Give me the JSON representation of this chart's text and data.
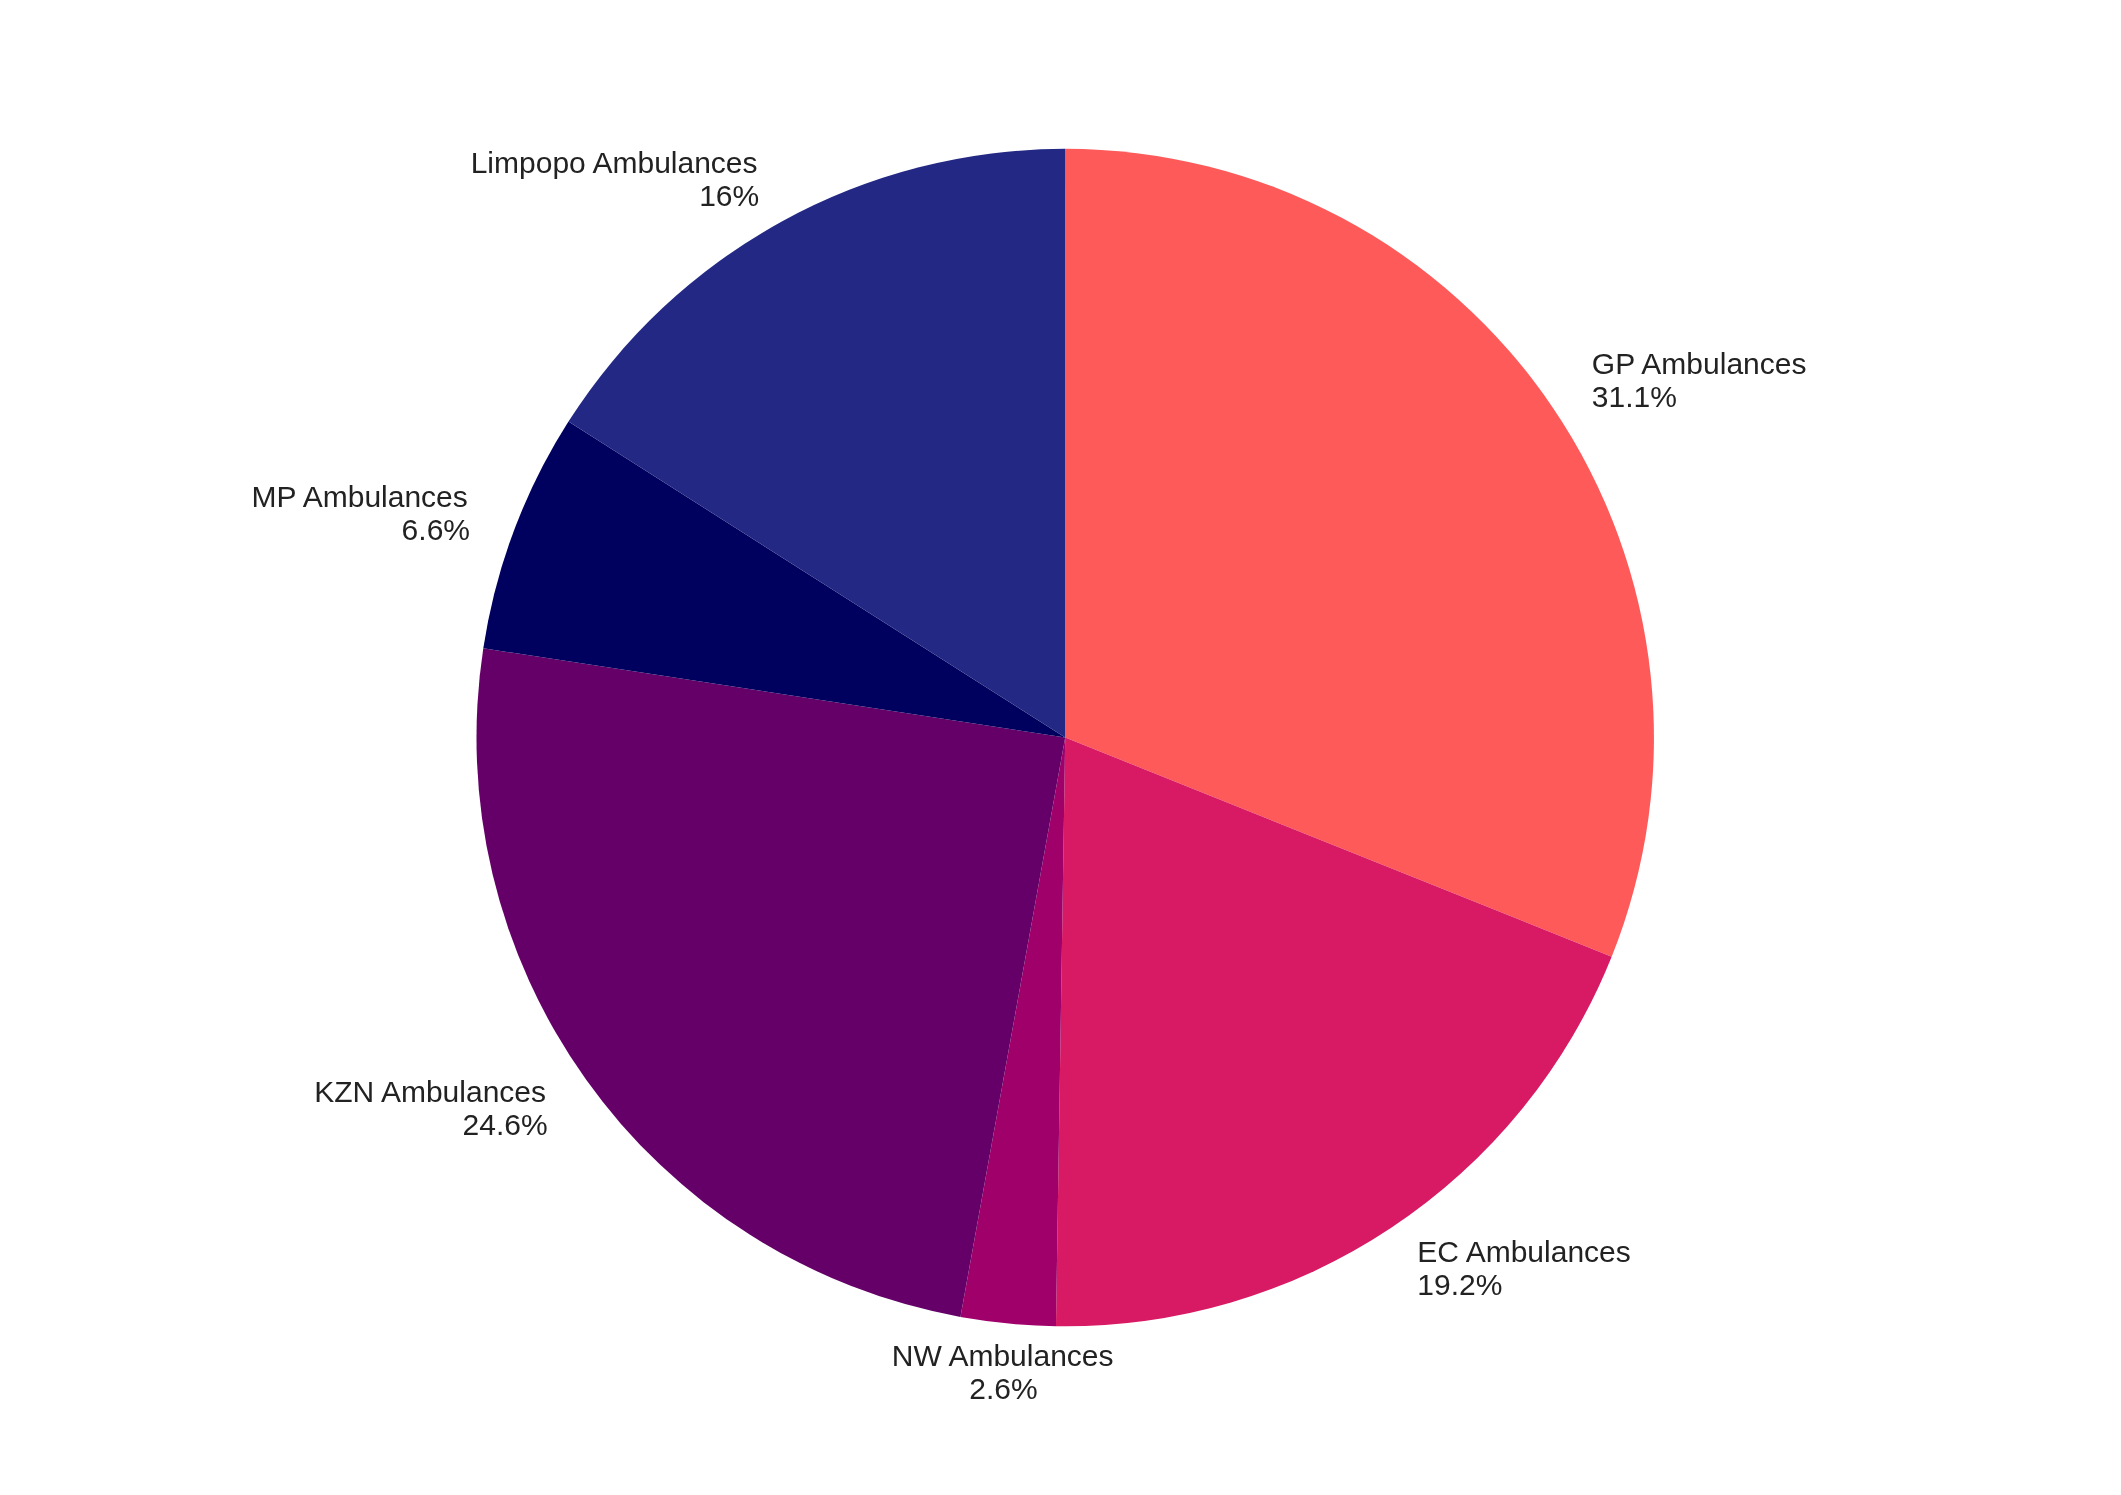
{
  "chart_data": {
    "type": "pie",
    "categories": [
      "GP Ambulances",
      "EC Ambulances",
      "NW Ambulances",
      "KZN Ambulances",
      "MP Ambulances",
      "Limpopo Ambulances"
    ],
    "values": [
      31.1,
      19.2,
      2.6,
      24.6,
      6.6,
      16
    ],
    "value_labels": [
      "31.1%",
      "19.2%",
      "2.6%",
      "24.6%",
      "6.6%",
      "16%"
    ],
    "colors": [
      "#ff5a5a",
      "#d81963",
      "#a0006a",
      "#640068",
      "#00005e",
      "#232885"
    ]
  }
}
